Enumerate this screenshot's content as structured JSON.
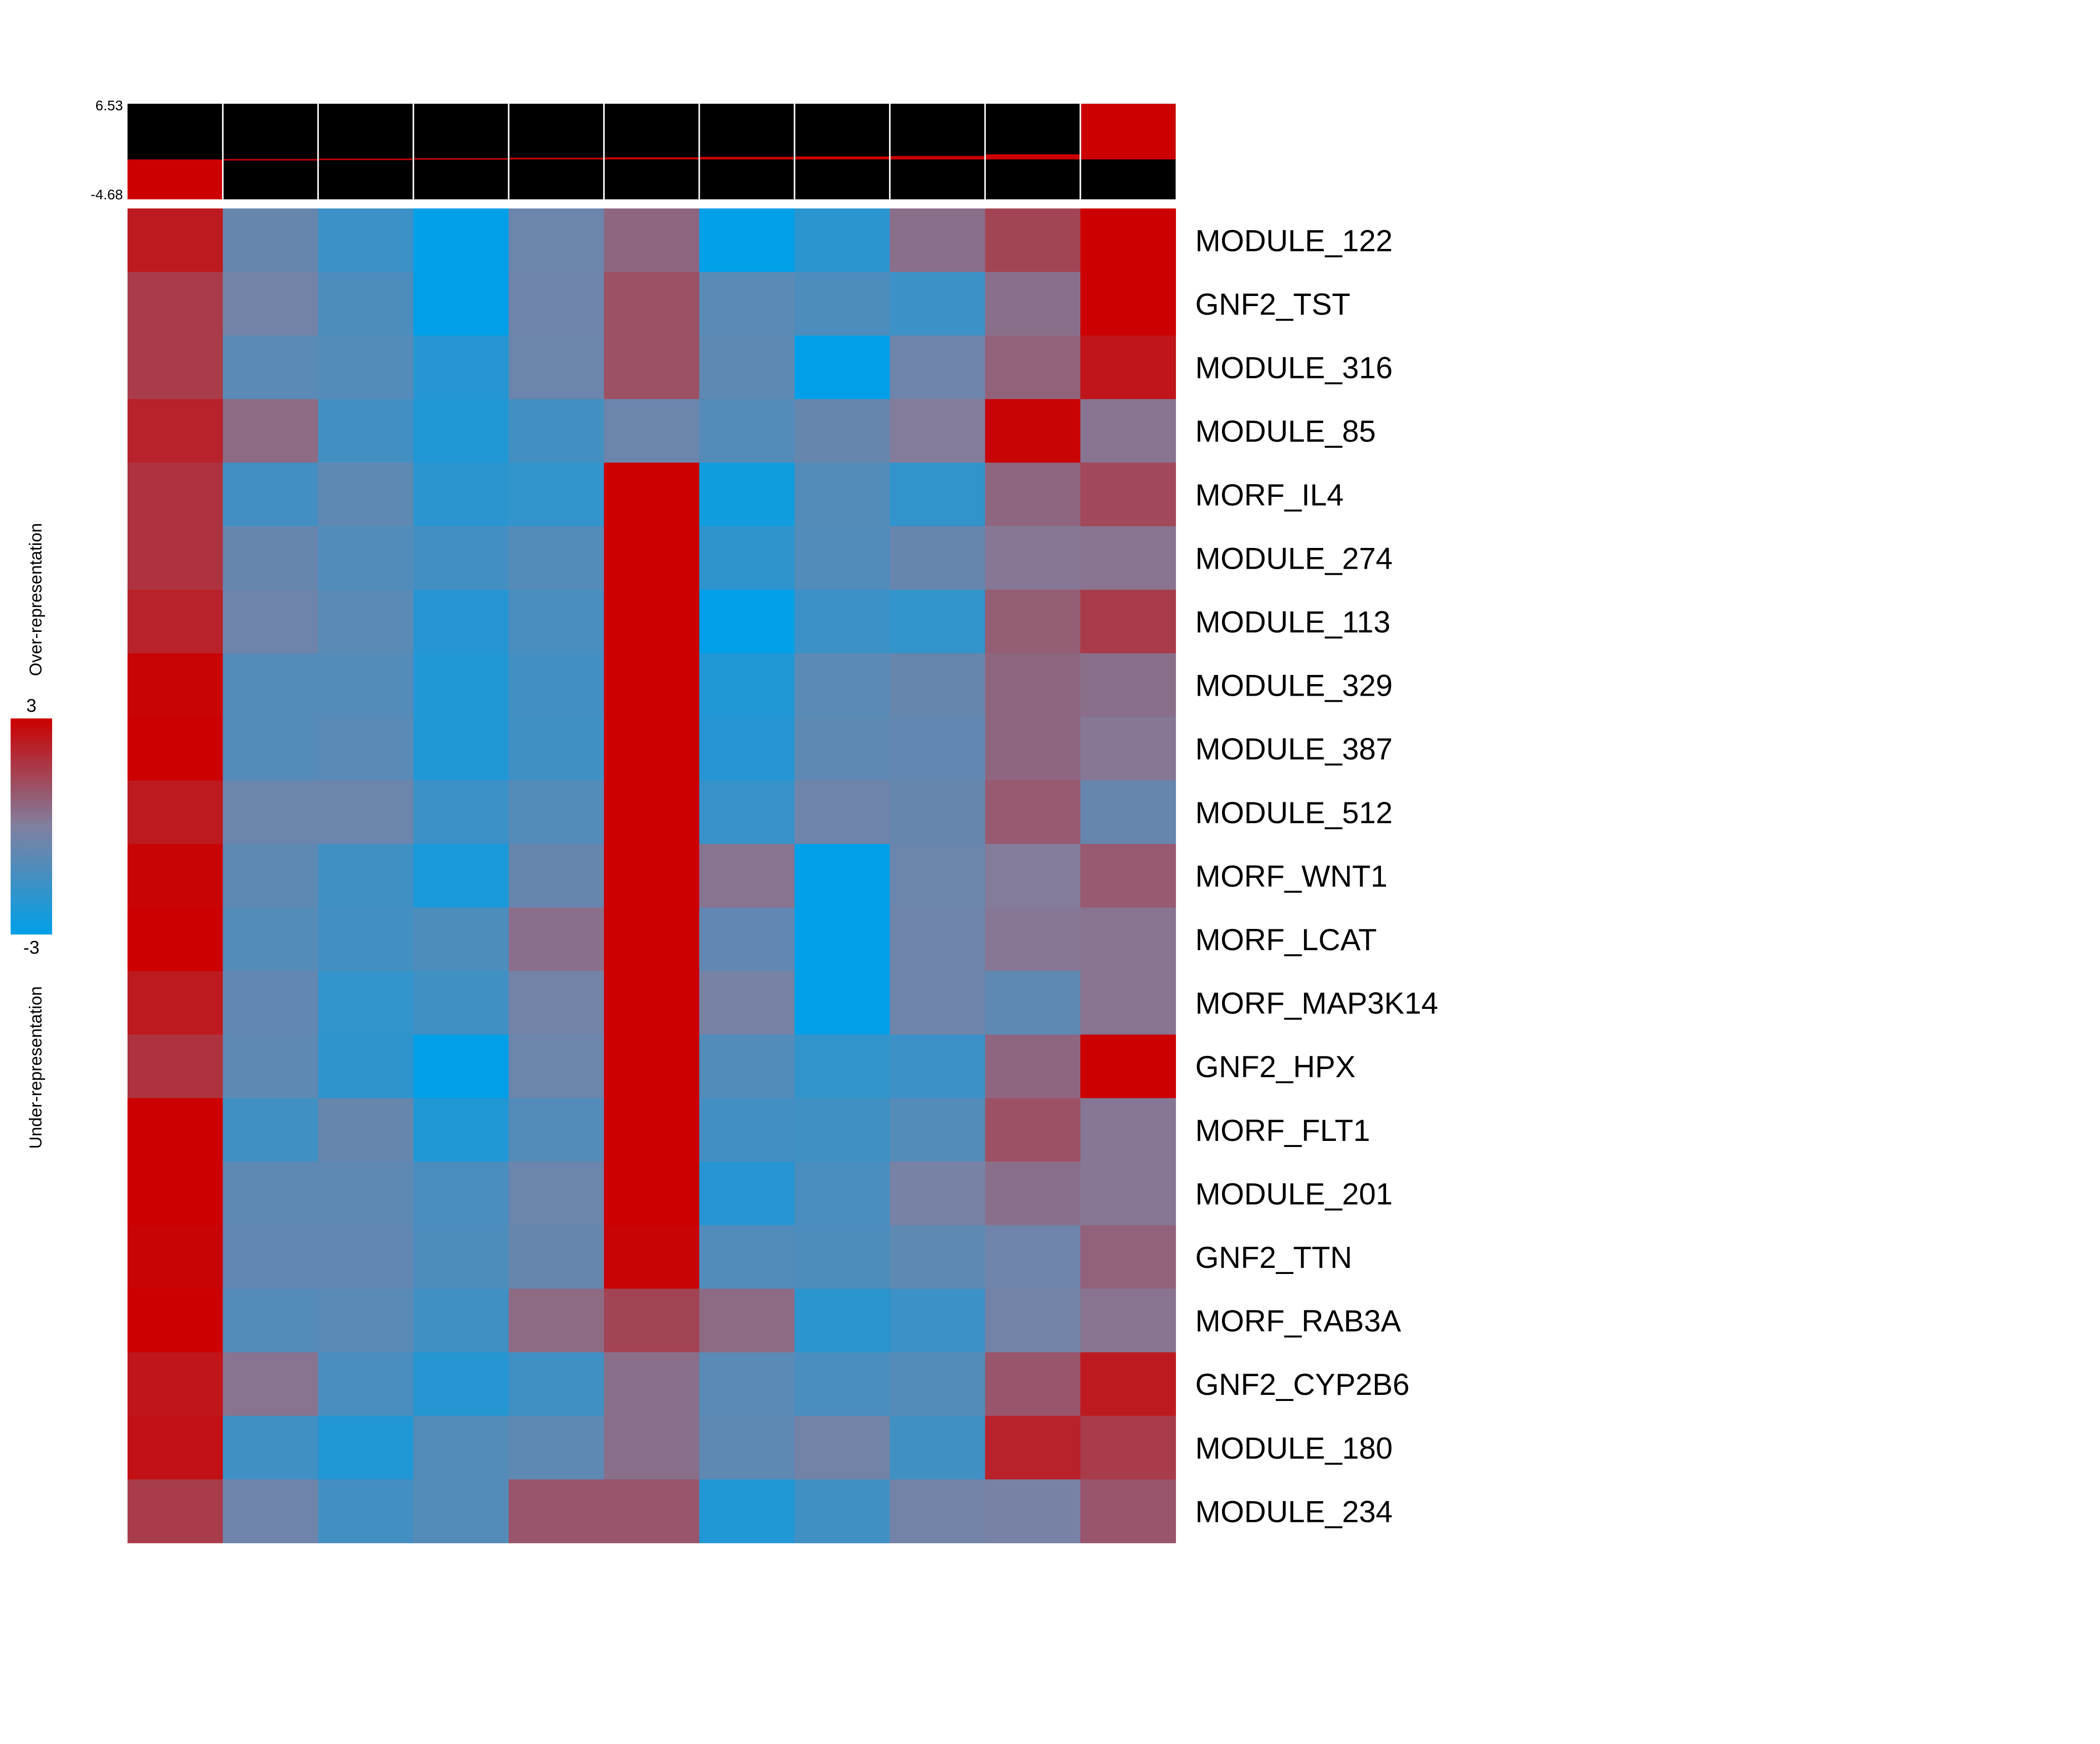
{
  "chart_data": {
    "type": "heatmap",
    "title": "",
    "columns": 11,
    "rows": [
      "MODULE_122",
      "GNF2_TST",
      "MODULE_316",
      "MODULE_85",
      "MORF_IL4",
      "MODULE_274",
      "MODULE_113",
      "MODULE_329",
      "MODULE_387",
      "MODULE_512",
      "MORF_WNT1",
      "MORF_LCAT",
      "MORF_MAP3K14",
      "GNF2_HPX",
      "MORF_FLT1",
      "MODULE_201",
      "GNF2_TTN",
      "MORF_RAB3A",
      "GNF2_CYP2B6",
      "MODULE_180",
      "MODULE_234"
    ],
    "values": [
      [
        2.4,
        -0.6,
        -1.6,
        -3.0,
        -0.5,
        0.6,
        -3.0,
        -2.0,
        0.4,
        1.4,
        3.0
      ],
      [
        1.6,
        -0.3,
        -1.2,
        -3.0,
        -0.4,
        1.1,
        -0.9,
        -1.2,
        -1.6,
        0.4,
        3.0
      ],
      [
        1.6,
        -0.9,
        -1.0,
        -2.1,
        -0.5,
        1.1,
        -0.8,
        -3.0,
        -0.4,
        0.7,
        2.5
      ],
      [
        2.2,
        0.5,
        -1.4,
        -2.2,
        -1.4,
        -0.5,
        -1.0,
        -0.6,
        0.1,
        2.9,
        0.3
      ],
      [
        1.8,
        -1.4,
        -0.8,
        -2.0,
        -1.8,
        3.0,
        -2.6,
        -1.0,
        -1.8,
        0.6,
        1.3
      ],
      [
        1.8,
        -0.6,
        -1.1,
        -1.4,
        -1.0,
        3.0,
        -1.9,
        -1.1,
        -0.6,
        0.2,
        0.3
      ],
      [
        2.2,
        -0.4,
        -0.9,
        -2.1,
        -1.3,
        3.0,
        -3.0,
        -1.6,
        -1.8,
        0.8,
        1.6
      ],
      [
        2.9,
        -1.0,
        -1.0,
        -2.2,
        -1.4,
        3.0,
        -2.2,
        -0.9,
        -0.6,
        0.6,
        0.4
      ],
      [
        3.0,
        -1.0,
        -0.9,
        -2.2,
        -1.5,
        3.0,
        -2.1,
        -0.8,
        -0.7,
        0.6,
        0.2
      ],
      [
        2.4,
        -0.5,
        -0.5,
        -1.6,
        -1.0,
        3.0,
        -1.7,
        -0.4,
        -0.6,
        0.9,
        -0.6
      ],
      [
        2.9,
        -0.8,
        -1.5,
        -2.4,
        -0.6,
        3.0,
        0.3,
        -3.0,
        -0.5,
        0.1,
        0.9
      ],
      [
        3.0,
        -1.0,
        -1.4,
        -1.2,
        0.4,
        3.0,
        -0.7,
        -3.0,
        -0.4,
        0.2,
        0.3
      ],
      [
        2.4,
        -0.7,
        -1.8,
        -1.5,
        -0.3,
        3.0,
        -0.2,
        -3.0,
        -0.4,
        -0.8,
        0.3
      ],
      [
        1.8,
        -0.8,
        -1.9,
        -3.0,
        -0.5,
        3.0,
        -1.1,
        -1.8,
        -1.6,
        0.6,
        3.0
      ],
      [
        3.0,
        -1.5,
        -0.6,
        -2.2,
        -1.0,
        3.0,
        -1.4,
        -1.5,
        -1.0,
        1.1,
        0.2
      ],
      [
        3.0,
        -0.8,
        -0.8,
        -1.3,
        -0.5,
        3.0,
        -2.1,
        -1.3,
        -0.2,
        0.4,
        0.2
      ],
      [
        2.9,
        -0.7,
        -0.7,
        -1.2,
        -0.6,
        2.9,
        -1.1,
        -1.2,
        -0.8,
        -0.4,
        0.7
      ],
      [
        3.0,
        -1.0,
        -0.9,
        -1.5,
        0.5,
        1.4,
        0.5,
        -2.0,
        -1.6,
        -0.3,
        0.3
      ],
      [
        2.5,
        0.3,
        -1.3,
        -2.1,
        -1.5,
        0.4,
        -0.9,
        -1.3,
        -1.0,
        1.0,
        2.4
      ],
      [
        2.6,
        -1.5,
        -2.2,
        -1.0,
        -0.8,
        0.4,
        -0.8,
        -0.3,
        -1.5,
        2.2,
        1.6
      ],
      [
        1.6,
        -0.4,
        -1.4,
        -1.0,
        1.0,
        1.0,
        -2.2,
        -1.5,
        -0.3,
        -0.2,
        1.0
      ]
    ],
    "scale": {
      "min": -3,
      "max": 3,
      "max_label": "3",
      "min_label": "-3"
    },
    "legend": {
      "over_label": "Over-representation",
      "under_label": "Under-representation"
    },
    "colors": {
      "low": "#00a0e8",
      "mid": "#8080a0",
      "high": "#cc0000",
      "black": "#000000",
      "white": "#ffffff"
    },
    "top_bar": {
      "max_label": "6.53",
      "min_label": "-4.68",
      "range": [
        -4.68,
        6.53
      ],
      "values": [
        -4.68,
        0.05,
        0.1,
        0.15,
        0.2,
        0.25,
        0.3,
        0.35,
        0.4,
        0.6,
        6.53
      ]
    }
  }
}
